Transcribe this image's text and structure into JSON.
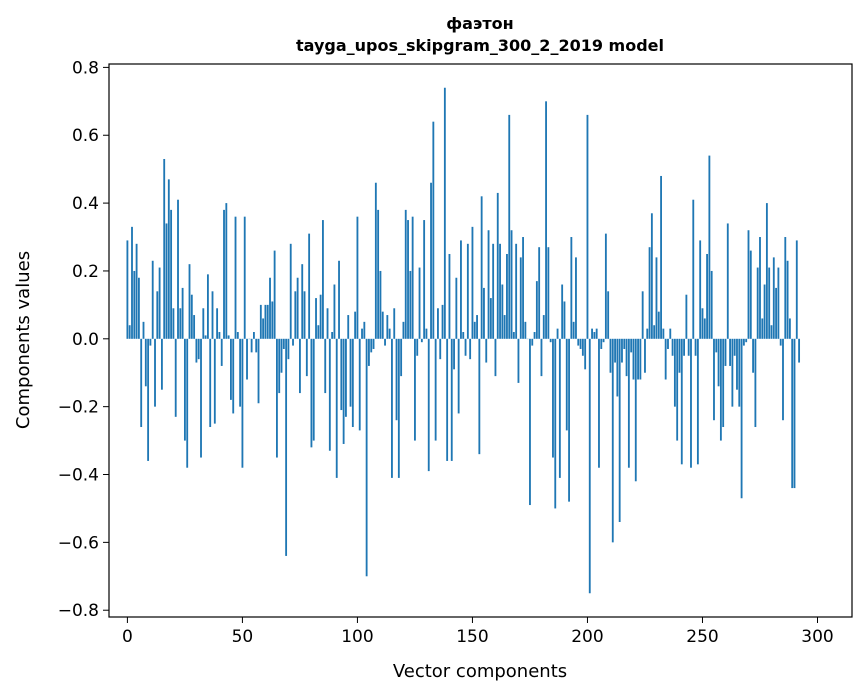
{
  "chart_data": {
    "type": "bar",
    "title": "фаэтон",
    "subtitle": "tayga_upos_skipgram_300_2_2019 model",
    "xlabel": "Vector components",
    "ylabel": "Components values",
    "xlim": [
      -8,
      315
    ],
    "ylim": [
      -0.82,
      0.81
    ],
    "xticks": [
      0,
      50,
      100,
      150,
      200,
      250,
      300
    ],
    "xtick_labels": [
      "0",
      "50",
      "100",
      "150",
      "200",
      "250",
      "300"
    ],
    "yticks": [
      0.8,
      0.6,
      0.4,
      0.2,
      0.0,
      -0.2,
      -0.4,
      -0.6,
      -0.8
    ],
    "ytick_labels": [
      "0.8",
      "0.6",
      "0.4",
      "0.2",
      "0.0",
      "−0.2",
      "−0.4",
      "−0.6",
      "−0.8"
    ],
    "grid": false,
    "bar_color": "#1f77b4",
    "values": [
      0.29,
      0.04,
      0.33,
      0.2,
      0.28,
      0.18,
      -0.26,
      0.05,
      -0.14,
      -0.36,
      -0.02,
      0.23,
      -0.2,
      0.14,
      0.21,
      -0.15,
      0.53,
      0.34,
      0.47,
      0.38,
      0.09,
      -0.23,
      0.41,
      0.09,
      0.15,
      -0.3,
      -0.38,
      0.22,
      0.13,
      0.07,
      -0.07,
      -0.06,
      -0.35,
      0.09,
      0.01,
      0.19,
      -0.26,
      0.14,
      -0.25,
      0.09,
      0.02,
      -0.08,
      0.38,
      0.4,
      0.01,
      -0.18,
      -0.22,
      0.36,
      0.02,
      -0.2,
      -0.38,
      0.36,
      -0.12,
      0.0,
      -0.04,
      0.02,
      -0.04,
      -0.19,
      0.1,
      0.06,
      0.1,
      0.1,
      0.18,
      0.11,
      0.26,
      -0.35,
      -0.16,
      -0.1,
      -0.03,
      -0.64,
      -0.06,
      0.28,
      -0.02,
      0.14,
      0.18,
      -0.16,
      0.22,
      0.14,
      -0.11,
      0.31,
      -0.32,
      -0.3,
      0.12,
      0.04,
      0.13,
      0.35,
      -0.16,
      0.09,
      -0.33,
      0.02,
      0.16,
      -0.41,
      0.23,
      -0.21,
      -0.31,
      -0.23,
      0.07,
      -0.2,
      -0.26,
      0.08,
      0.36,
      -0.27,
      0.03,
      0.05,
      -0.7,
      -0.08,
      -0.04,
      -0.03,
      0.46,
      0.38,
      0.2,
      0.08,
      -0.02,
      0.07,
      0.03,
      -0.41,
      0.09,
      -0.24,
      -0.41,
      -0.11,
      0.05,
      0.38,
      0.35,
      0.2,
      0.36,
      -0.3,
      -0.05,
      0.21,
      -0.01,
      0.35,
      0.03,
      -0.39,
      0.46,
      0.64,
      -0.3,
      0.09,
      -0.06,
      0.1,
      0.74,
      -0.36,
      0.25,
      -0.36,
      -0.09,
      0.18,
      -0.22,
      0.29,
      0.02,
      -0.05,
      0.28,
      -0.06,
      0.33,
      0.05,
      0.07,
      -0.34,
      0.42,
      0.15,
      -0.07,
      0.32,
      0.12,
      0.28,
      -0.11,
      0.43,
      0.28,
      0.16,
      0.07,
      0.25,
      0.66,
      0.32,
      0.02,
      0.28,
      -0.13,
      0.24,
      0.3,
      0.05,
      0.0,
      -0.49,
      -0.02,
      0.02,
      0.17,
      0.27,
      -0.11,
      0.07,
      0.7,
      0.27,
      -0.01,
      -0.35,
      -0.5,
      0.03,
      -0.41,
      0.16,
      0.11,
      -0.27,
      -0.48,
      0.3,
      0.05,
      0.24,
      -0.02,
      -0.03,
      -0.05,
      -0.09,
      0.66,
      -0.75,
      0.03,
      0.02,
      0.03,
      -0.38,
      -0.03,
      -0.01,
      0.31,
      0.14,
      -0.1,
      -0.6,
      -0.07,
      -0.17,
      -0.54,
      -0.07,
      -0.03,
      -0.11,
      -0.38,
      -0.04,
      -0.12,
      -0.42,
      -0.12,
      -0.12,
      0.14,
      -0.1,
      0.03,
      0.27,
      0.37,
      0.04,
      0.24,
      0.08,
      0.48,
      0.03,
      -0.12,
      -0.03,
      0.03,
      -0.05,
      -0.2,
      -0.3,
      -0.1,
      -0.37,
      -0.05,
      0.13,
      -0.05,
      -0.38,
      0.41,
      -0.05,
      -0.37,
      0.29,
      0.09,
      0.06,
      0.25,
      0.54,
      0.2,
      -0.24,
      -0.04,
      -0.14,
      -0.3,
      -0.26,
      -0.08,
      0.34,
      -0.08,
      -0.2,
      -0.05,
      -0.15,
      -0.2,
      -0.47,
      -0.02,
      -0.01,
      0.32,
      0.26,
      -0.1,
      -0.26,
      0.21,
      0.3,
      0.06,
      0.16,
      0.4,
      0.21,
      0.04,
      0.24,
      0.15,
      0.21,
      -0.02,
      -0.24,
      0.3,
      0.23,
      0.06,
      -0.44,
      -0.44,
      0.29,
      -0.07
    ]
  }
}
